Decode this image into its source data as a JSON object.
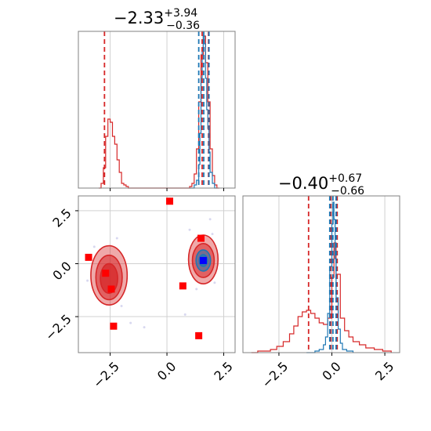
{
  "figure": {
    "type": "corner-plot"
  },
  "colors": {
    "red": "#d62728",
    "blue": "#1f77b4",
    "marker_red": "#ff0000",
    "marker_blue": "#0000ff",
    "grid": "#d0d0d0",
    "frame": "#808080"
  },
  "chart_data": [
    {
      "panel": "marginal-x",
      "type": "line",
      "title_main": "−2.33",
      "title_sup": "+3.94",
      "title_sub": "−0.36",
      "xlim": [
        -3.9,
        3.0
      ],
      "grid": true,
      "vlines": [
        {
          "x": -2.75,
          "color": "red"
        },
        {
          "x": 1.55,
          "color": "red"
        },
        {
          "x": 1.83,
          "color": "red"
        },
        {
          "x": 1.4,
          "color": "blue"
        },
        {
          "x": 1.62,
          "color": "blue"
        },
        {
          "x": 1.85,
          "color": "blue"
        }
      ],
      "series": [
        {
          "color": "red",
          "x": [
            -3.0,
            -2.9,
            -2.8,
            -2.7,
            -2.6,
            -2.5,
            -2.4,
            -2.3,
            -2.2,
            -2.1,
            -2.0,
            -1.9,
            -1.8,
            -1.7,
            -1.0,
            0.8,
            1.0,
            1.1,
            1.2,
            1.3,
            1.4,
            1.5,
            1.6,
            1.7,
            1.8,
            1.9,
            2.0,
            2.1,
            2.2,
            2.3
          ],
          "y": [
            0.0,
            0.03,
            0.13,
            0.33,
            0.44,
            0.42,
            0.33,
            0.28,
            0.18,
            0.1,
            0.03,
            0.02,
            0.01,
            0.0,
            0.0,
            0.0,
            0.01,
            0.03,
            0.09,
            0.25,
            0.55,
            0.85,
            0.97,
            0.8,
            0.55,
            0.25,
            0.08,
            0.02,
            0.0,
            0.0
          ]
        },
        {
          "color": "blue",
          "x": [
            1.0,
            1.1,
            1.2,
            1.3,
            1.4,
            1.45,
            1.5,
            1.55,
            1.6,
            1.65,
            1.7,
            1.75,
            1.8,
            1.85,
            1.9,
            2.0,
            2.1,
            2.2
          ],
          "y": [
            0.0,
            0.0,
            0.02,
            0.05,
            0.15,
            0.35,
            0.7,
            0.88,
            0.97,
            0.92,
            0.7,
            0.5,
            0.38,
            0.23,
            0.1,
            0.03,
            0.0,
            0.0
          ]
        }
      ]
    },
    {
      "panel": "joint",
      "type": "scatter",
      "xlim": [
        -3.9,
        3.0
      ],
      "ylim": [
        -4.2,
        3.2
      ],
      "xticks": [
        "−2.5",
        "0.0",
        "2.5"
      ],
      "xtick_values": [
        -2.5,
        0.0,
        2.5
      ],
      "yticks": [
        "2.5",
        "0.0",
        "−2.5"
      ],
      "ytick_values": [
        2.5,
        0.0,
        -2.5
      ],
      "grid": true,
      "contours": [
        {
          "cx": -2.55,
          "cy": -0.55,
          "rx": 0.8,
          "ry": 1.4,
          "fill": "red",
          "opacity": 0.4
        },
        {
          "cx": -2.55,
          "cy": -0.65,
          "rx": 0.58,
          "ry": 1.05,
          "fill": "red",
          "opacity": 0.55
        },
        {
          "cx": -2.55,
          "cy": -0.7,
          "rx": 0.38,
          "ry": 0.7,
          "fill": "red",
          "opacity": 0.75
        },
        {
          "cx": 1.6,
          "cy": 0.2,
          "rx": 0.65,
          "ry": 1.15,
          "fill": "red",
          "opacity": 0.4
        },
        {
          "cx": 1.6,
          "cy": 0.15,
          "rx": 0.48,
          "ry": 0.8,
          "fill": "red",
          "opacity": 0.55
        },
        {
          "cx": 1.6,
          "cy": 0.15,
          "rx": 0.32,
          "ry": 0.5,
          "fill": "blue",
          "opacity": 0.55
        },
        {
          "cx": 1.6,
          "cy": 0.15,
          "rx": 0.18,
          "ry": 0.28,
          "fill": "blue",
          "opacity": 0.8
        }
      ],
      "points": [
        {
          "x": 0.12,
          "y": 2.95,
          "color": "marker_red"
        },
        {
          "x": -3.45,
          "y": 0.3,
          "color": "marker_red"
        },
        {
          "x": -2.7,
          "y": -0.45,
          "color": "marker_red"
        },
        {
          "x": -2.45,
          "y": -1.2,
          "color": "marker_red"
        },
        {
          "x": -2.35,
          "y": -2.95,
          "color": "marker_red"
        },
        {
          "x": 0.7,
          "y": -1.05,
          "color": "marker_red"
        },
        {
          "x": 1.5,
          "y": 1.2,
          "color": "marker_red"
        },
        {
          "x": 1.4,
          "y": -3.4,
          "color": "marker_red"
        },
        {
          "x": 1.6,
          "y": 0.15,
          "color": "marker_blue"
        }
      ]
    },
    {
      "panel": "marginal-y",
      "type": "line",
      "title_main": "−0.40",
      "title_sup": "+0.67",
      "title_sub": "−0.66",
      "xlim": [
        -4.2,
        3.2
      ],
      "xticks": [
        "−2.5",
        "0.0",
        "2.5"
      ],
      "xtick_values": [
        -2.5,
        0.0,
        2.5
      ],
      "grid": true,
      "vlines": [
        {
          "x": -1.1,
          "color": "red"
        },
        {
          "x": -0.05,
          "color": "red"
        },
        {
          "x": 0.25,
          "color": "red"
        },
        {
          "x": -0.1,
          "color": "blue"
        },
        {
          "x": 0.05,
          "color": "blue"
        },
        {
          "x": 0.2,
          "color": "blue"
        }
      ],
      "series": [
        {
          "color": "red",
          "x": [
            -3.8,
            -3.5,
            -3.2,
            -2.9,
            -2.6,
            -2.3,
            -2.0,
            -1.8,
            -1.6,
            -1.4,
            -1.2,
            -1.0,
            -0.8,
            -0.6,
            -0.4,
            -0.2,
            0.0,
            0.1,
            0.2,
            0.4,
            0.6,
            0.8,
            1.0,
            1.3,
            1.6,
            2.0,
            2.4,
            2.8
          ],
          "y": [
            0.0,
            0.01,
            0.01,
            0.02,
            0.04,
            0.07,
            0.12,
            0.17,
            0.23,
            0.26,
            0.27,
            0.25,
            0.22,
            0.19,
            0.18,
            0.22,
            0.48,
            0.7,
            0.5,
            0.22,
            0.14,
            0.1,
            0.07,
            0.05,
            0.03,
            0.02,
            0.01,
            0.0
          ]
        },
        {
          "color": "blue",
          "x": [
            -1.2,
            -0.8,
            -0.6,
            -0.4,
            -0.3,
            -0.2,
            -0.1,
            0.0,
            0.05,
            0.1,
            0.15,
            0.2,
            0.3,
            0.4,
            0.5,
            0.7,
            1.0
          ],
          "y": [
            0.0,
            0.01,
            0.02,
            0.05,
            0.1,
            0.25,
            0.55,
            0.82,
            0.96,
            0.85,
            0.6,
            0.35,
            0.15,
            0.06,
            0.02,
            0.01,
            0.0
          ]
        }
      ]
    }
  ]
}
